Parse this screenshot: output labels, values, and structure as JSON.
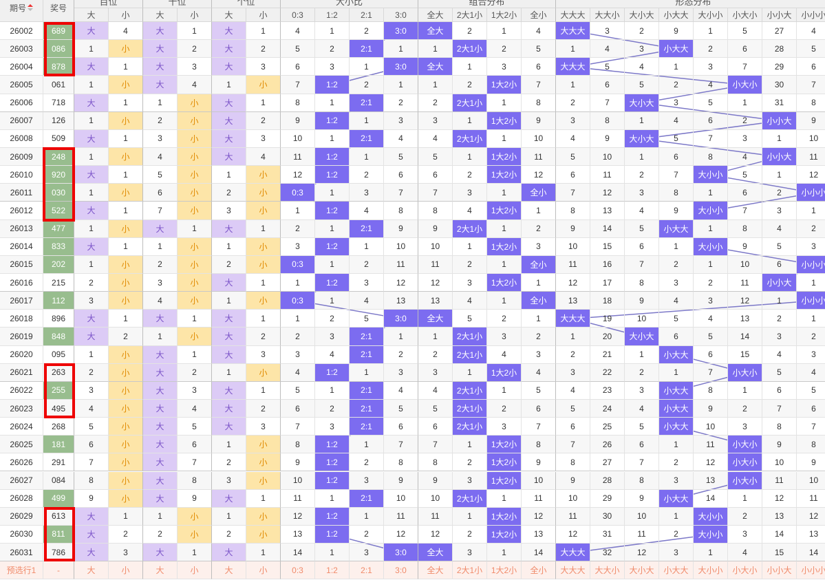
{
  "header": {
    "issue": "期号",
    "number": "奖号",
    "groups": [
      {
        "label": "百位",
        "cols": [
          "大",
          "小"
        ]
      },
      {
        "label": "十位",
        "cols": [
          "大",
          "小"
        ]
      },
      {
        "label": "个位",
        "cols": [
          "大",
          "小"
        ]
      },
      {
        "label": "大小比",
        "cols": [
          "0:3",
          "1:2",
          "2:1",
          "3:0"
        ]
      },
      {
        "label": "组合分布",
        "cols": [
          "全大",
          "2大1小",
          "1大2小",
          "全小"
        ]
      },
      {
        "label": "形态分布",
        "cols": [
          "大大大",
          "大大小",
          "大小大",
          "小大大",
          "大小小",
          "小大小",
          "小小大",
          "小小小"
        ]
      }
    ]
  },
  "rows": [
    {
      "issue": "26002",
      "number": "689",
      "green": true,
      "cells": [
        "大",
        "4",
        "大",
        "1",
        "大",
        "1",
        "4",
        "1",
        "2",
        "3:0",
        "全大",
        "2",
        "1",
        "4",
        "大大大",
        "3",
        "2",
        "9",
        "1",
        "5",
        "27",
        "4"
      ]
    },
    {
      "issue": "26003",
      "number": "086",
      "green": true,
      "cells": [
        "1",
        "小",
        "大",
        "2",
        "大",
        "2",
        "5",
        "2",
        "2:1",
        "1",
        "1",
        "2大1小",
        "2",
        "5",
        "1",
        "4",
        "3",
        "小大大",
        "2",
        "6",
        "28",
        "5"
      ]
    },
    {
      "issue": "26004",
      "number": "878",
      "green": true,
      "cells": [
        "大",
        "1",
        "大",
        "3",
        "大",
        "3",
        "6",
        "3",
        "1",
        "3:0",
        "全大",
        "1",
        "3",
        "6",
        "大大大",
        "5",
        "4",
        "1",
        "3",
        "7",
        "29",
        "6"
      ]
    },
    {
      "issue": "26005",
      "number": "061",
      "green": false,
      "cells": [
        "1",
        "小",
        "大",
        "4",
        "1",
        "小",
        "7",
        "1:2",
        "2",
        "1",
        "1",
        "2",
        "1大2小",
        "7",
        "1",
        "6",
        "5",
        "2",
        "4",
        "小大小",
        "30",
        "7"
      ]
    },
    {
      "issue": "26006",
      "number": "718",
      "green": false,
      "cells": [
        "大",
        "1",
        "1",
        "小",
        "大",
        "1",
        "8",
        "1",
        "2:1",
        "2",
        "2",
        "2大1小",
        "1",
        "8",
        "2",
        "7",
        "大小大",
        "3",
        "5",
        "1",
        "31",
        "8"
      ]
    },
    {
      "issue": "26007",
      "number": "126",
      "green": false,
      "cells": [
        "1",
        "小",
        "2",
        "小",
        "大",
        "2",
        "9",
        "1:2",
        "1",
        "3",
        "3",
        "1",
        "1大2小",
        "9",
        "3",
        "8",
        "1",
        "4",
        "6",
        "2",
        "小小大",
        "9"
      ]
    },
    {
      "issue": "26008",
      "number": "509",
      "green": false,
      "cells": [
        "大",
        "1",
        "3",
        "小",
        "大",
        "3",
        "10",
        "1",
        "2:1",
        "4",
        "4",
        "2大1小",
        "1",
        "10",
        "4",
        "9",
        "大小大",
        "5",
        "7",
        "3",
        "1",
        "10"
      ]
    },
    {
      "issue": "26009",
      "number": "248",
      "green": true,
      "cells": [
        "1",
        "小",
        "4",
        "小",
        "大",
        "4",
        "11",
        "1:2",
        "1",
        "5",
        "5",
        "1",
        "1大2小",
        "11",
        "5",
        "10",
        "1",
        "6",
        "8",
        "4",
        "小小大",
        "11"
      ]
    },
    {
      "issue": "26010",
      "number": "920",
      "green": true,
      "cells": [
        "大",
        "1",
        "5",
        "小",
        "1",
        "小",
        "12",
        "1:2",
        "2",
        "6",
        "6",
        "2",
        "1大2小",
        "12",
        "6",
        "11",
        "2",
        "7",
        "大小小",
        "5",
        "1",
        "12"
      ]
    },
    {
      "issue": "26011",
      "number": "030",
      "green": true,
      "cells": [
        "1",
        "小",
        "6",
        "小",
        "2",
        "小",
        "0:3",
        "1",
        "3",
        "7",
        "7",
        "3",
        "1",
        "全小",
        "7",
        "12",
        "3",
        "8",
        "1",
        "6",
        "2",
        "小小小"
      ]
    },
    {
      "issue": "26012",
      "number": "522",
      "green": true,
      "cells": [
        "大",
        "1",
        "7",
        "小",
        "3",
        "小",
        "1",
        "1:2",
        "4",
        "8",
        "8",
        "4",
        "1大2小",
        "1",
        "8",
        "13",
        "4",
        "9",
        "大小小",
        "7",
        "3",
        "1"
      ]
    },
    {
      "issue": "26013",
      "number": "477",
      "green": true,
      "cells": [
        "1",
        "小",
        "大",
        "1",
        "大",
        "1",
        "2",
        "1",
        "2:1",
        "9",
        "9",
        "2大1小",
        "1",
        "2",
        "9",
        "14",
        "5",
        "小大大",
        "1",
        "8",
        "4",
        "2"
      ]
    },
    {
      "issue": "26014",
      "number": "833",
      "green": true,
      "cells": [
        "大",
        "1",
        "1",
        "小",
        "1",
        "小",
        "3",
        "1:2",
        "1",
        "10",
        "10",
        "1",
        "1大2小",
        "3",
        "10",
        "15",
        "6",
        "1",
        "大小小",
        "9",
        "5",
        "3"
      ]
    },
    {
      "issue": "26015",
      "number": "202",
      "green": true,
      "cells": [
        "1",
        "小",
        "2",
        "小",
        "2",
        "小",
        "0:3",
        "1",
        "2",
        "11",
        "11",
        "2",
        "1",
        "全小",
        "11",
        "16",
        "7",
        "2",
        "1",
        "10",
        "6",
        "小小小"
      ]
    },
    {
      "issue": "26016",
      "number": "215",
      "green": false,
      "cells": [
        "2",
        "小",
        "3",
        "小",
        "大",
        "1",
        "1",
        "1:2",
        "3",
        "12",
        "12",
        "3",
        "1大2小",
        "1",
        "12",
        "17",
        "8",
        "3",
        "2",
        "11",
        "小小大",
        "1"
      ]
    },
    {
      "issue": "26017",
      "number": "112",
      "green": true,
      "cells": [
        "3",
        "小",
        "4",
        "小",
        "1",
        "小",
        "0:3",
        "1",
        "4",
        "13",
        "13",
        "4",
        "1",
        "全小",
        "13",
        "18",
        "9",
        "4",
        "3",
        "12",
        "1",
        "小小小"
      ]
    },
    {
      "issue": "26018",
      "number": "896",
      "green": false,
      "cells": [
        "大",
        "1",
        "大",
        "1",
        "大",
        "1",
        "1",
        "2",
        "5",
        "3:0",
        "全大",
        "5",
        "2",
        "1",
        "大大大",
        "19",
        "10",
        "5",
        "4",
        "13",
        "2",
        "1"
      ]
    },
    {
      "issue": "26019",
      "number": "848",
      "green": true,
      "cells": [
        "大",
        "2",
        "1",
        "小",
        "大",
        "2",
        "2",
        "3",
        "2:1",
        "1",
        "1",
        "2大1小",
        "3",
        "2",
        "1",
        "20",
        "大小大",
        "6",
        "5",
        "14",
        "3",
        "2"
      ]
    },
    {
      "issue": "26020",
      "number": "095",
      "green": false,
      "cells": [
        "1",
        "小",
        "大",
        "1",
        "大",
        "3",
        "3",
        "4",
        "2:1",
        "2",
        "2",
        "2大1小",
        "4",
        "3",
        "2",
        "21",
        "1",
        "小大大",
        "6",
        "15",
        "4",
        "3"
      ]
    },
    {
      "issue": "26021",
      "number": "263",
      "green": false,
      "cells": [
        "2",
        "小",
        "大",
        "2",
        "1",
        "小",
        "4",
        "1:2",
        "1",
        "3",
        "3",
        "1",
        "1大2小",
        "4",
        "3",
        "22",
        "2",
        "1",
        "7",
        "小大小",
        "5",
        "4"
      ]
    },
    {
      "issue": "26022",
      "number": "255",
      "green": true,
      "cells": [
        "3",
        "小",
        "大",
        "3",
        "大",
        "1",
        "5",
        "1",
        "2:1",
        "4",
        "4",
        "2大1小",
        "1",
        "5",
        "4",
        "23",
        "3",
        "小大大",
        "8",
        "1",
        "6",
        "5"
      ]
    },
    {
      "issue": "26023",
      "number": "495",
      "green": false,
      "cells": [
        "4",
        "小",
        "大",
        "4",
        "大",
        "2",
        "6",
        "2",
        "2:1",
        "5",
        "5",
        "2大1小",
        "2",
        "6",
        "5",
        "24",
        "4",
        "小大大",
        "9",
        "2",
        "7",
        "6"
      ]
    },
    {
      "issue": "26024",
      "number": "268",
      "green": false,
      "cells": [
        "5",
        "小",
        "大",
        "5",
        "大",
        "3",
        "7",
        "3",
        "2:1",
        "6",
        "6",
        "2大1小",
        "3",
        "7",
        "6",
        "25",
        "5",
        "小大大",
        "10",
        "3",
        "8",
        "7"
      ]
    },
    {
      "issue": "26025",
      "number": "181",
      "green": true,
      "cells": [
        "6",
        "小",
        "大",
        "6",
        "1",
        "小",
        "8",
        "1:2",
        "1",
        "7",
        "7",
        "1",
        "1大2小",
        "8",
        "7",
        "26",
        "6",
        "1",
        "11",
        "小大小",
        "9",
        "8"
      ]
    },
    {
      "issue": "26026",
      "number": "291",
      "green": false,
      "cells": [
        "7",
        "小",
        "大",
        "7",
        "2",
        "小",
        "9",
        "1:2",
        "2",
        "8",
        "8",
        "2",
        "1大2小",
        "9",
        "8",
        "27",
        "7",
        "2",
        "12",
        "小大小",
        "10",
        "9"
      ]
    },
    {
      "issue": "26027",
      "number": "084",
      "green": false,
      "cells": [
        "8",
        "小",
        "大",
        "8",
        "3",
        "小",
        "10",
        "1:2",
        "3",
        "9",
        "9",
        "3",
        "1大2小",
        "10",
        "9",
        "28",
        "8",
        "3",
        "13",
        "小大小",
        "11",
        "10"
      ]
    },
    {
      "issue": "26028",
      "number": "499",
      "green": true,
      "cells": [
        "9",
        "小",
        "大",
        "9",
        "大",
        "1",
        "11",
        "1",
        "2:1",
        "10",
        "10",
        "2大1小",
        "1",
        "11",
        "10",
        "29",
        "9",
        "小大大",
        "14",
        "1",
        "12",
        "11"
      ]
    },
    {
      "issue": "26029",
      "number": "613",
      "green": false,
      "cells": [
        "大",
        "1",
        "1",
        "小",
        "1",
        "小",
        "12",
        "1:2",
        "1",
        "11",
        "11",
        "1",
        "1大2小",
        "12",
        "11",
        "30",
        "10",
        "1",
        "大小小",
        "2",
        "13",
        "12"
      ]
    },
    {
      "issue": "26030",
      "number": "811",
      "green": true,
      "cells": [
        "大",
        "2",
        "2",
        "小",
        "2",
        "小",
        "13",
        "1:2",
        "2",
        "12",
        "12",
        "2",
        "1大2小",
        "13",
        "12",
        "31",
        "11",
        "2",
        "大小小",
        "3",
        "14",
        "13"
      ]
    },
    {
      "issue": "26031",
      "number": "786",
      "green": false,
      "cells": [
        "大",
        "3",
        "大",
        "1",
        "大",
        "1",
        "14",
        "1",
        "3",
        "3:0",
        "全大",
        "3",
        "1",
        "14",
        "大大大",
        "32",
        "12",
        "3",
        "1",
        "4",
        "15",
        "14"
      ]
    }
  ],
  "footer": {
    "issue": "预选行1",
    "number": "-",
    "cells": [
      "大",
      "小",
      "大",
      "小",
      "大",
      "小",
      "0:3",
      "1:2",
      "2:1",
      "3:0",
      "全大",
      "2大1小",
      "1大2小",
      "全小",
      "大大大",
      "大大小",
      "大小大",
      "小大大",
      "大小小",
      "小大小",
      "小小大",
      "小小小"
    ]
  }
}
